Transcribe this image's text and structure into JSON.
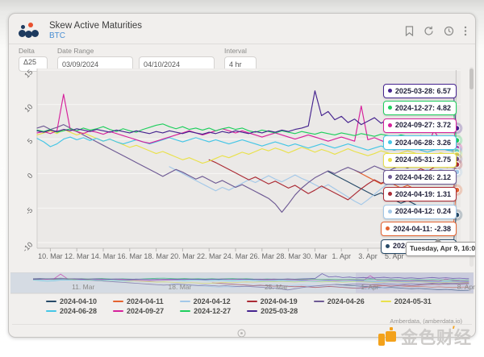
{
  "window": {
    "title": "Skew Active Maturities",
    "subtitle": "BTC"
  },
  "toolbar": {
    "icons": [
      "bookmark-icon",
      "refresh-icon",
      "history-icon",
      "more-icon"
    ]
  },
  "controls": {
    "delta_label": "Delta",
    "delta_value": "Δ25",
    "date_range_label": "Date Range",
    "date_from": "03/09/2024",
    "date_to": "04/10/2024",
    "interval_label": "Interval",
    "interval_value": "4 hr"
  },
  "chart_data": {
    "type": "line",
    "title": "Skew Active Maturities",
    "symbol": "BTC",
    "x_axis": {
      "start_date": "2024-03-09",
      "end_date": "2024-04-10",
      "unit": "days since 2024-03-09",
      "tick_days": [
        1,
        3,
        5,
        7,
        9,
        11,
        13,
        15,
        17,
        19,
        21,
        23,
        25,
        27
      ],
      "tick_labels": [
        "10. Mar",
        "12. Mar",
        "14. Mar",
        "16. Mar",
        "18. Mar",
        "20. Mar",
        "22. Mar",
        "24. Mar",
        "26. Mar",
        "28. Mar",
        "30. Mar",
        "1. Apr",
        "3. Apr",
        "5. Apr"
      ]
    },
    "y_axis": {
      "min": -10.8,
      "max": 15,
      "ticks": [
        15,
        10,
        5,
        0,
        -5,
        -10
      ]
    },
    "end_day": 31.67,
    "end_time": "Tuesday, Apr 9, 16:00",
    "series": [
      {
        "name": "2024-04-10",
        "color": "#274a68",
        "start": 22,
        "step": 0.5,
        "last": "-6.00",
        "values": [
          0.3,
          -0.2,
          -0.7,
          -1.2,
          -1.7,
          -2.2,
          -2.7,
          -3.2,
          -2.8,
          -3.3,
          -3.8,
          -4.3,
          -3.9,
          -4.4,
          -4.9,
          -5.4,
          -5.0,
          -5.5,
          -6.2,
          -6.0
        ]
      },
      {
        "name": "2024-04-11",
        "color": "#e4622f",
        "start": 24,
        "step": 0.5,
        "last": "-2.38",
        "values": [
          0.5,
          0.0,
          -0.5,
          -1.0,
          -1.5,
          -1.1,
          -1.6,
          -2.1,
          -1.7,
          -2.2,
          -2.6,
          -2.2,
          -2.6,
          -3.0,
          -2.6,
          -2.38
        ]
      },
      {
        "name": "2024-04-12",
        "color": "#a3c8e8",
        "start": 10,
        "step": 0.5,
        "last": "0.24",
        "values": [
          1.0,
          0.5,
          0.0,
          -0.5,
          -1.0,
          -1.5,
          -2.0,
          -2.5,
          -2.0,
          -2.4,
          -1.9,
          -1.4,
          -0.9,
          -1.3,
          -0.8,
          -0.3,
          -0.8,
          -1.2,
          -0.7,
          -0.2,
          -0.7,
          -1.1,
          -1.6,
          -2.1,
          -1.6,
          -2.2,
          -2.8,
          -3.4,
          -4.0,
          -4.5,
          -3.8,
          -3.0,
          -2.2,
          -1.5,
          -0.9,
          -0.3,
          0.2,
          -0.3,
          0.2,
          0.6,
          0.2,
          0.6,
          0.3,
          0.24
        ]
      },
      {
        "name": "2024-04-19",
        "color": "#ab2b35",
        "start": 13,
        "step": 0.5,
        "last": "1.31",
        "values": [
          2.0,
          1.6,
          1.1,
          0.6,
          0.1,
          -0.4,
          -0.9,
          -0.5,
          -1.0,
          -1.5,
          -1.1,
          -1.6,
          -2.1,
          -1.7,
          -2.3,
          -2.9,
          -2.4,
          -1.8,
          -2.3,
          -2.8,
          -3.3,
          -3.8,
          -3.0,
          -2.2,
          -1.5,
          -0.9,
          -1.4,
          -1.0,
          -0.5,
          -1.0,
          -0.4,
          0.2,
          0.7,
          0.3,
          0.9,
          1.2,
          0.9,
          1.31
        ]
      },
      {
        "name": "2024-04-26",
        "color": "#6e5a94",
        "start": 0,
        "step": 0.5,
        "last": "2.12",
        "values": [
          6.6,
          6.9,
          6.4,
          6.7,
          7.1,
          6.6,
          6.1,
          5.6,
          5.1,
          4.6,
          4.1,
          3.6,
          3.1,
          2.6,
          2.1,
          1.6,
          1.1,
          0.6,
          0.1,
          -0.4,
          0.1,
          0.6,
          0.2,
          -0.3,
          -0.8,
          -0.4,
          -0.9,
          -1.4,
          -1.0,
          -1.5,
          -2.0,
          -1.6,
          -2.1,
          -2.6,
          -3.1,
          -3.6,
          -4.4,
          -5.6,
          -4.4,
          -3.1,
          -2.1,
          -1.3,
          -0.6,
          -0.1,
          0.4,
          0.0,
          0.5,
          0.9,
          0.5,
          0.1,
          0.6,
          1.1,
          0.7,
          0.3,
          0.8,
          1.2,
          0.8,
          1.3,
          1.7,
          1.3,
          1.8,
          1.5,
          1.9,
          2.12
        ]
      },
      {
        "name": "2024-05-31",
        "color": "#e9e14b",
        "start": 0,
        "step": 0.5,
        "last": "2.75",
        "values": [
          5.6,
          5.9,
          6.2,
          5.8,
          6.4,
          6.0,
          5.6,
          5.9,
          5.5,
          5.1,
          4.7,
          5.0,
          4.6,
          4.2,
          3.8,
          4.1,
          3.7,
          3.3,
          2.9,
          3.2,
          2.8,
          2.4,
          2.0,
          2.3,
          1.9,
          1.5,
          1.8,
          2.2,
          2.6,
          2.3,
          2.7,
          3.1,
          2.8,
          3.2,
          3.6,
          3.3,
          3.7,
          3.4,
          3.0,
          3.4,
          3.8,
          3.5,
          3.1,
          3.5,
          3.2,
          2.8,
          3.2,
          3.6,
          3.2,
          2.9,
          2.6,
          2.9,
          3.3,
          3.0,
          2.7,
          3.0,
          3.3,
          3.0,
          2.7,
          2.4,
          2.7,
          3.0,
          2.8,
          2.75
        ]
      },
      {
        "name": "2024-06-28",
        "color": "#45c6e6",
        "start": 0,
        "step": 0.5,
        "last": "3.26",
        "values": [
          5.1,
          4.6,
          3.9,
          4.3,
          5.0,
          5.3,
          4.9,
          5.2,
          4.8,
          5.1,
          4.7,
          5.0,
          4.6,
          4.3,
          4.6,
          4.9,
          4.6,
          4.3,
          4.6,
          4.9,
          5.2,
          4.9,
          4.6,
          4.9,
          5.2,
          4.9,
          4.6,
          4.9,
          4.6,
          4.3,
          4.6,
          4.9,
          4.6,
          4.3,
          4.0,
          4.3,
          4.6,
          4.3,
          4.0,
          4.3,
          4.0,
          3.7,
          4.0,
          4.3,
          4.0,
          3.7,
          4.0,
          4.3,
          4.0,
          3.7,
          3.4,
          3.7,
          4.0,
          3.7,
          3.4,
          3.7,
          4.0,
          3.7,
          3.4,
          3.1,
          3.4,
          3.7,
          3.4,
          3.26
        ]
      },
      {
        "name": "2024-09-27",
        "color": "#d6219c",
        "start": 0,
        "step": 0.5,
        "last": "3.72",
        "values": [
          5.9,
          6.1,
          5.8,
          6.2,
          11.5,
          6.4,
          6.1,
          5.8,
          6.2,
          6.0,
          5.7,
          6.1,
          5.8,
          5.5,
          5.2,
          4.9,
          4.6,
          4.4,
          4.7,
          5.0,
          5.3,
          5.6,
          5.9,
          6.2,
          5.9,
          5.6,
          5.9,
          6.2,
          6.5,
          6.2,
          5.9,
          6.2,
          5.9,
          5.6,
          5.3,
          5.6,
          5.9,
          5.6,
          5.3,
          5.0,
          5.3,
          5.6,
          5.3,
          5.0,
          4.7,
          5.0,
          5.3,
          5.0,
          4.7,
          9.8,
          4.9,
          5.2,
          4.8,
          4.4,
          4.1,
          4.4,
          4.7,
          4.4,
          4.1,
          3.8,
          6.3,
          4.6,
          4.0,
          3.72
        ]
      },
      {
        "name": "2024-12-27",
        "color": "#1ece5d",
        "start": 0,
        "step": 0.5,
        "last": "4.82",
        "values": [
          6.3,
          6.1,
          6.4,
          6.0,
          6.2,
          6.5,
          6.2,
          6.6,
          6.3,
          6.5,
          6.8,
          6.4,
          6.1,
          6.5,
          6.2,
          6.0,
          6.4,
          6.7,
          7.0,
          7.2,
          6.8,
          6.5,
          6.8,
          6.4,
          6.6,
          6.3,
          6.6,
          6.2,
          6.5,
          6.7,
          6.4,
          6.6,
          6.2,
          6.0,
          6.3,
          6.1,
          5.9,
          6.2,
          6.0,
          5.8,
          6.1,
          5.9,
          5.7,
          6.0,
          5.8,
          5.6,
          5.9,
          5.7,
          5.5,
          5.8,
          5.6,
          5.4,
          5.7,
          5.5,
          5.3,
          5.6,
          5.4,
          5.2,
          5.5,
          5.3,
          5.1,
          5.4,
          5.0,
          4.82
        ]
      },
      {
        "name": "2025-03-28",
        "color": "#46248f",
        "start": 0,
        "step": 0.5,
        "last": "6.57",
        "values": [
          6.2,
          6.0,
          6.3,
          6.1,
          6.4,
          6.2,
          6.5,
          6.3,
          6.1,
          6.4,
          6.2,
          6.0,
          6.3,
          6.1,
          5.9,
          6.2,
          6.0,
          5.8,
          6.1,
          5.9,
          6.2,
          6.0,
          5.8,
          6.1,
          5.9,
          5.7,
          6.0,
          5.8,
          6.1,
          5.9,
          6.2,
          6.0,
          5.8,
          6.1,
          5.9,
          6.2,
          6.0,
          6.3,
          6.1,
          6.4,
          6.6,
          6.9,
          12.0,
          8.4,
          9.0,
          7.8,
          8.3,
          7.4,
          7.9,
          7.1,
          7.6,
          8.1,
          7.3,
          7.8,
          7.0,
          7.5,
          6.8,
          7.3,
          7.9,
          7.1,
          7.6,
          6.9,
          7.2,
          6.57
        ]
      }
    ]
  },
  "tooltip": {
    "date_label": "Tuesday, Apr 9, 16:00",
    "entries": [
      {
        "date": "2025-03-28",
        "value": "6.57"
      },
      {
        "date": "2024-12-27",
        "value": "4.82"
      },
      {
        "date": "2024-09-27",
        "value": "3.72"
      },
      {
        "date": "2024-06-28",
        "value": "3.26"
      },
      {
        "date": "2024-05-31",
        "value": "2.75"
      },
      {
        "date": "2024-04-26",
        "value": "2.12"
      },
      {
        "date": "2024-04-19",
        "value": "1.31"
      },
      {
        "date": "2024-04-12",
        "value": "0.24"
      },
      {
        "date": "2024-04-11",
        "value": "-2.38"
      },
      {
        "date": "2024-04-10",
        "value": "-6.00"
      }
    ]
  },
  "navigator": {
    "labels": [
      {
        "text": "11. Mar",
        "day": 2
      },
      {
        "text": "18. Mar",
        "day": 9
      },
      {
        "text": "25. Mar",
        "day": 16
      },
      {
        "text": "1. Apr",
        "day": 23
      },
      {
        "text": "8. Apr",
        "day": 30
      }
    ]
  },
  "credit": "Amberdata, (amberdata.io)",
  "watermark": {
    "brand": "amberdata",
    "site": "金色财经"
  }
}
